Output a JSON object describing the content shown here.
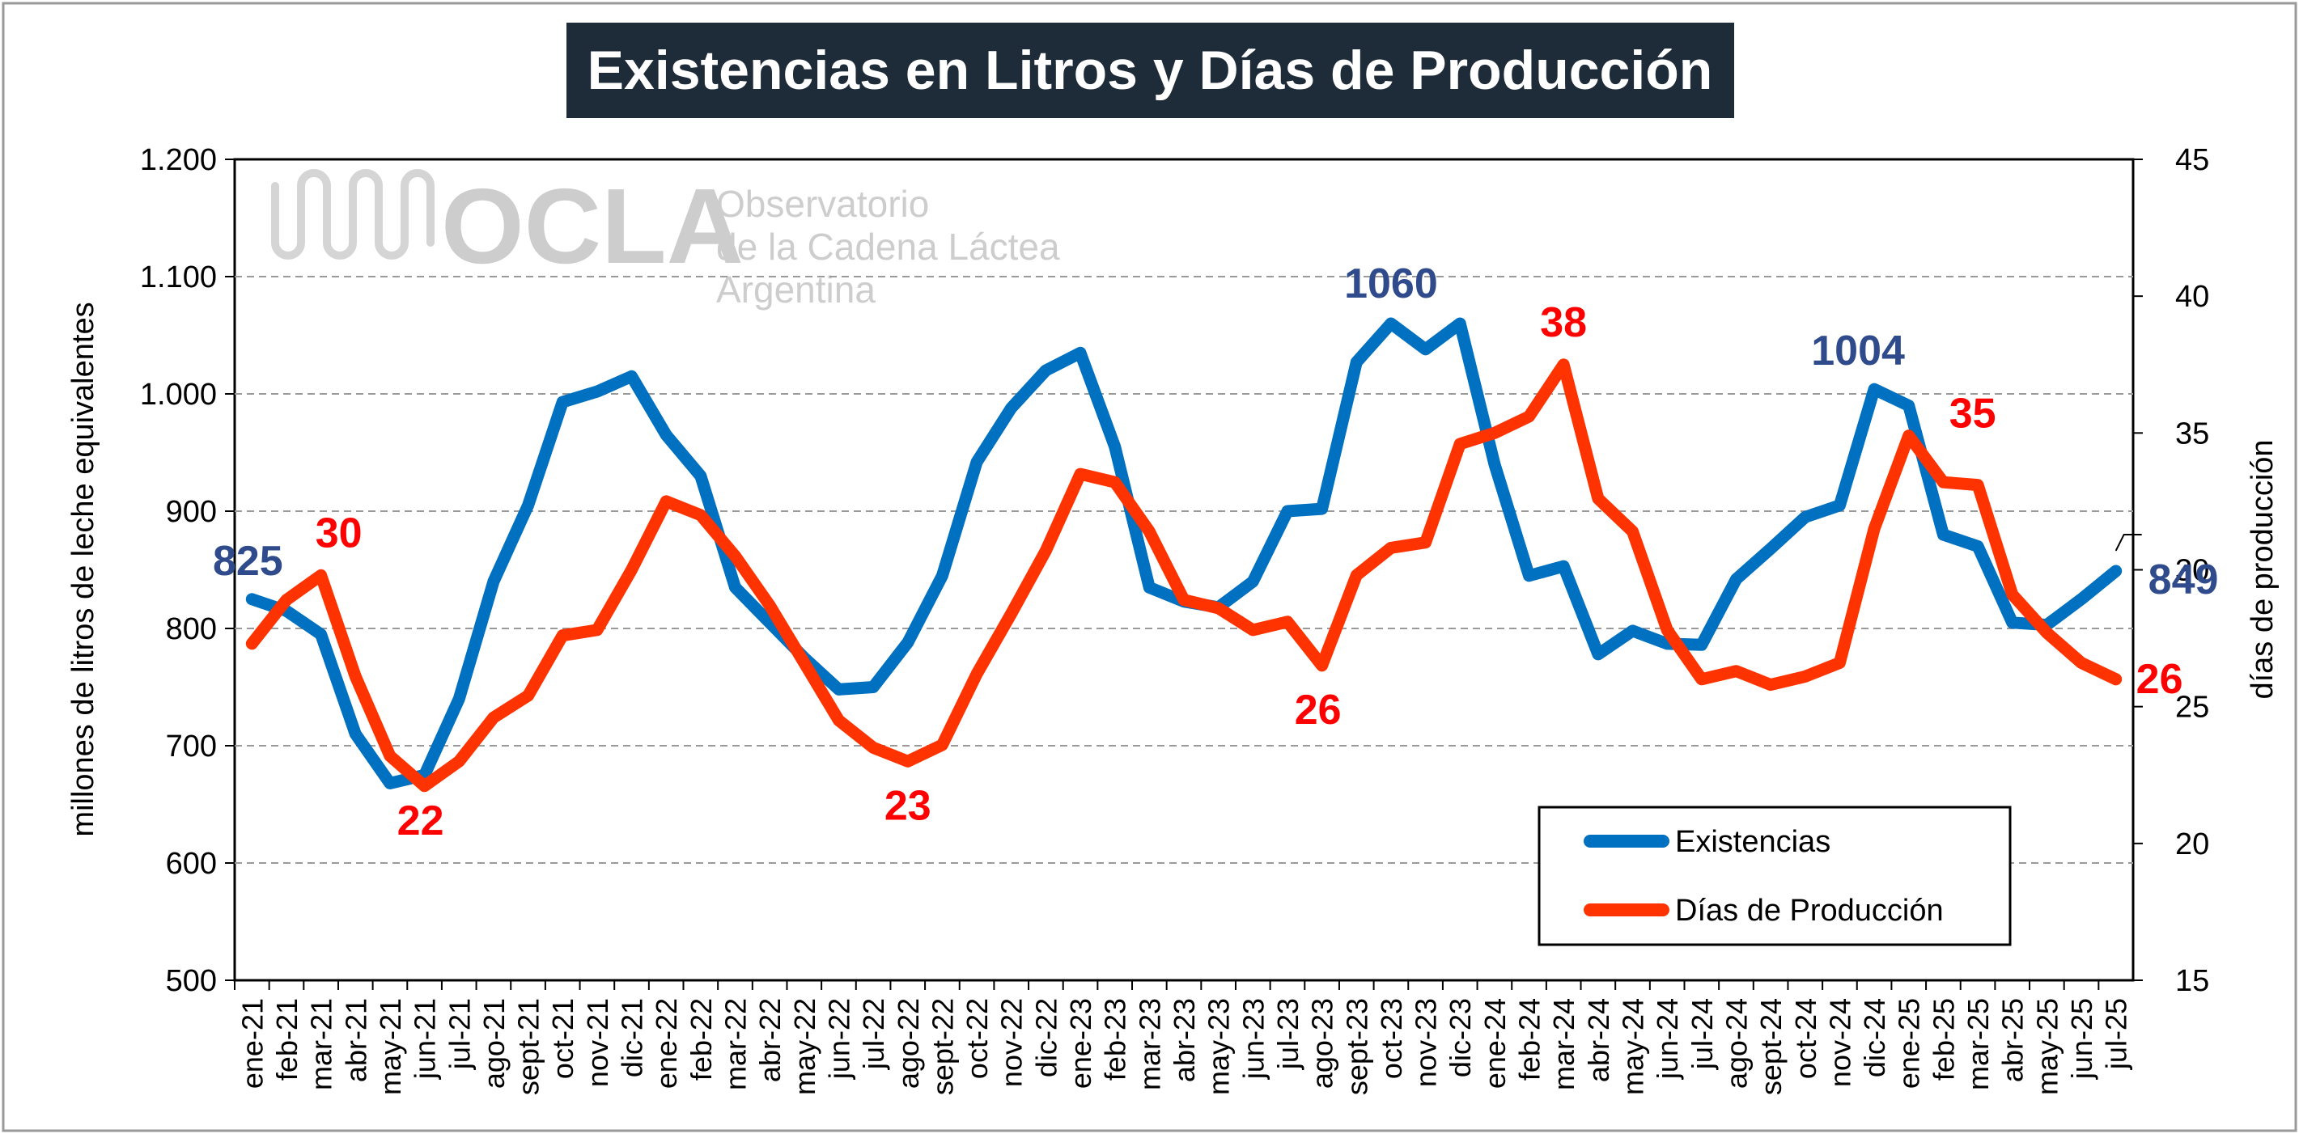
{
  "chart_data": {
    "type": "line",
    "title": "Existencias en Litros y Días de Producción",
    "ylabel": "millones de litros de leche equivalentes",
    "y2label": "días de producción",
    "ylim": [
      500,
      1200
    ],
    "y2lim": [
      15,
      45
    ],
    "yticks": [
      "500",
      "600",
      "700",
      "800",
      "900",
      "1.000",
      "1.100",
      "1.200"
    ],
    "y2ticks": [
      "15",
      "20",
      "25",
      "30",
      "35",
      "40",
      "45"
    ],
    "grid": true,
    "legend_position": "bottom-right",
    "categories": [
      "ene-21",
      "feb-21",
      "mar-21",
      "abr-21",
      "may-21",
      "jun-21",
      "jul-21",
      "ago-21",
      "sept-21",
      "oct-21",
      "nov-21",
      "dic-21",
      "ene-22",
      "feb-22",
      "mar-22",
      "abr-22",
      "may-22",
      "jun-22",
      "jul-22",
      "ago-22",
      "sept-22",
      "oct-22",
      "nov-22",
      "dic-22",
      "ene-23",
      "feb-23",
      "mar-23",
      "abr-23",
      "may-23",
      "jun-23",
      "jul-23",
      "ago-23",
      "sept-23",
      "oct-23",
      "nov-23",
      "dic-23",
      "ene-24",
      "feb-24",
      "mar-24",
      "abr-24",
      "may-24",
      "jun-24",
      "jul-24",
      "ago-24",
      "sept-24",
      "oct-24",
      "nov-24",
      "dic-24",
      "ene-25",
      "feb-25",
      "mar-25",
      "abr-25",
      "may-25",
      "jun-25",
      "jul-25"
    ],
    "series": [
      {
        "name": "Existencias",
        "axis": "left",
        "color": "#0070C0",
        "values": [
          825,
          815,
          795,
          710,
          668,
          675,
          740,
          840,
          905,
          993,
          1002,
          1015,
          965,
          930,
          835,
          805,
          775,
          748,
          750,
          788,
          845,
          942,
          988,
          1020,
          1035,
          955,
          835,
          823,
          818,
          840,
          900,
          902,
          1027,
          1060,
          1038,
          1060,
          940,
          845,
          853,
          778,
          798,
          787,
          786,
          842,
          868,
          895,
          905,
          1004,
          990,
          880,
          870,
          805,
          803,
          825,
          849
        ]
      },
      {
        "name": "Días de Producción",
        "axis": "right",
        "color": "#FF3300",
        "values": [
          27.3,
          28.9,
          29.8,
          26.1,
          23.2,
          22.1,
          23.0,
          24.6,
          25.4,
          27.6,
          27.8,
          30.0,
          32.5,
          32.0,
          30.5,
          28.7,
          26.6,
          24.5,
          23.5,
          23.0,
          23.6,
          26.2,
          28.4,
          30.7,
          33.5,
          33.2,
          31.4,
          28.9,
          28.6,
          27.8,
          28.1,
          26.5,
          29.8,
          30.8,
          31.0,
          34.6,
          35.0,
          35.6,
          37.5,
          32.6,
          31.4,
          27.8,
          26.0,
          26.3,
          25.8,
          26.1,
          26.6,
          31.5,
          34.9,
          33.2,
          33.1,
          29.1,
          27.7,
          26.6,
          26.0
        ]
      }
    ],
    "annotations": [
      {
        "text": "825",
        "series": "Existencias",
        "index": 0,
        "color": "#2F4B8C"
      },
      {
        "text": "1060",
        "series": "Existencias",
        "index": 33,
        "color": "#2F4B8C"
      },
      {
        "text": "1004",
        "series": "Existencias",
        "index": 47,
        "color": "#2F4B8C"
      },
      {
        "text": "849",
        "series": "Existencias",
        "index": 54,
        "color": "#2F4B8C"
      },
      {
        "text": "30",
        "series": "Días de Producción",
        "index": 2,
        "color": "#FF0000"
      },
      {
        "text": "22",
        "series": "Días de Producción",
        "index": 5,
        "color": "#FF0000"
      },
      {
        "text": "23",
        "series": "Días de Producción",
        "index": 19,
        "color": "#FF0000"
      },
      {
        "text": "26",
        "series": "Días de Producción",
        "index": 31,
        "color": "#FF0000"
      },
      {
        "text": "38",
        "series": "Días de Producción",
        "index": 38,
        "color": "#FF0000"
      },
      {
        "text": "35",
        "series": "Días de Producción",
        "index": 48,
        "color": "#FF0000"
      },
      {
        "text": "26",
        "series": "Días de Producción",
        "index": 54,
        "color": "#FF0000"
      }
    ]
  },
  "watermark": {
    "logo": "OCLA",
    "line1": "Observatorio",
    "line2": "de la Cadena Láctea",
    "line3": "Argentina"
  }
}
